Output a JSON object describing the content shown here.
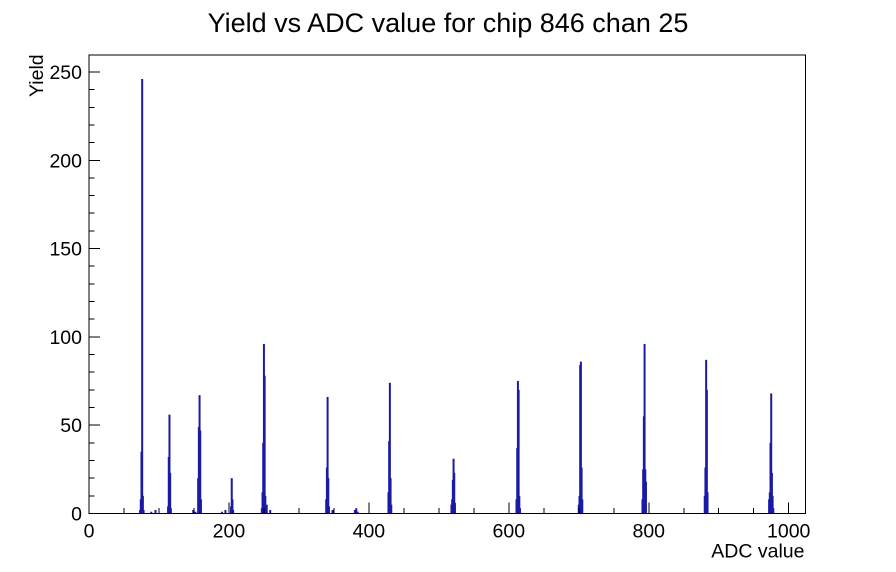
{
  "chart_data": {
    "type": "bar",
    "title": "Yield vs ADC value for chip 846 chan 25",
    "xlabel": "ADC value",
    "ylabel": "Yield",
    "xlim": [
      0,
      1024
    ],
    "ylim": [
      0,
      259.6
    ],
    "x_major_ticks": [
      0,
      200,
      400,
      600,
      800,
      1000
    ],
    "x_minor_step": 50,
    "y_major_ticks": [
      0,
      50,
      100,
      150,
      200,
      250
    ],
    "y_minor_step": 10,
    "grid": false,
    "legend": "none",
    "line_color": "#1A1AA6",
    "axis_color": "#000000",
    "background_color": "#ffffff",
    "points": [
      [
        73,
        2
      ],
      [
        74,
        8
      ],
      [
        75,
        35
      ],
      [
        76,
        246
      ],
      [
        77,
        10
      ],
      [
        78,
        2
      ],
      [
        89,
        1
      ],
      [
        95,
        2
      ],
      [
        113,
        4
      ],
      [
        114,
        32
      ],
      [
        115,
        56
      ],
      [
        116,
        23
      ],
      [
        117,
        3
      ],
      [
        149,
        2
      ],
      [
        152,
        1
      ],
      [
        156,
        20
      ],
      [
        157,
        49
      ],
      [
        158,
        67
      ],
      [
        159,
        47
      ],
      [
        160,
        8
      ],
      [
        190,
        1
      ],
      [
        195,
        2
      ],
      [
        203,
        4
      ],
      [
        204,
        20
      ],
      [
        205,
        8
      ],
      [
        206,
        2
      ],
      [
        247,
        3
      ],
      [
        248,
        12
      ],
      [
        249,
        40
      ],
      [
        250,
        96
      ],
      [
        251,
        78
      ],
      [
        252,
        10
      ],
      [
        254,
        5
      ],
      [
        259,
        2
      ],
      [
        339,
        8
      ],
      [
        340,
        26
      ],
      [
        341,
        66
      ],
      [
        342,
        20
      ],
      [
        343,
        4
      ],
      [
        348,
        2
      ],
      [
        380,
        2
      ],
      [
        382,
        3
      ],
      [
        384,
        1
      ],
      [
        428,
        12
      ],
      [
        429,
        41
      ],
      [
        430,
        74
      ],
      [
        431,
        20
      ],
      [
        432,
        5
      ],
      [
        518,
        5
      ],
      [
        519,
        8
      ],
      [
        520,
        19
      ],
      [
        521,
        31
      ],
      [
        522,
        23
      ],
      [
        523,
        6
      ],
      [
        611,
        8
      ],
      [
        612,
        37
      ],
      [
        613,
        75
      ],
      [
        614,
        70
      ],
      [
        615,
        10
      ],
      [
        616,
        3
      ],
      [
        700,
        5
      ],
      [
        701,
        10
      ],
      [
        702,
        84
      ],
      [
        703,
        86
      ],
      [
        704,
        26
      ],
      [
        705,
        8
      ],
      [
        791,
        8
      ],
      [
        792,
        25
      ],
      [
        793,
        55
      ],
      [
        794,
        96
      ],
      [
        795,
        25
      ],
      [
        796,
        18
      ],
      [
        880,
        10
      ],
      [
        881,
        26
      ],
      [
        882,
        87
      ],
      [
        883,
        70
      ],
      [
        884,
        12
      ],
      [
        972,
        8
      ],
      [
        973,
        12
      ],
      [
        974,
        40
      ],
      [
        975,
        68
      ],
      [
        976,
        23
      ],
      [
        977,
        10
      ],
      [
        978,
        3
      ]
    ]
  }
}
